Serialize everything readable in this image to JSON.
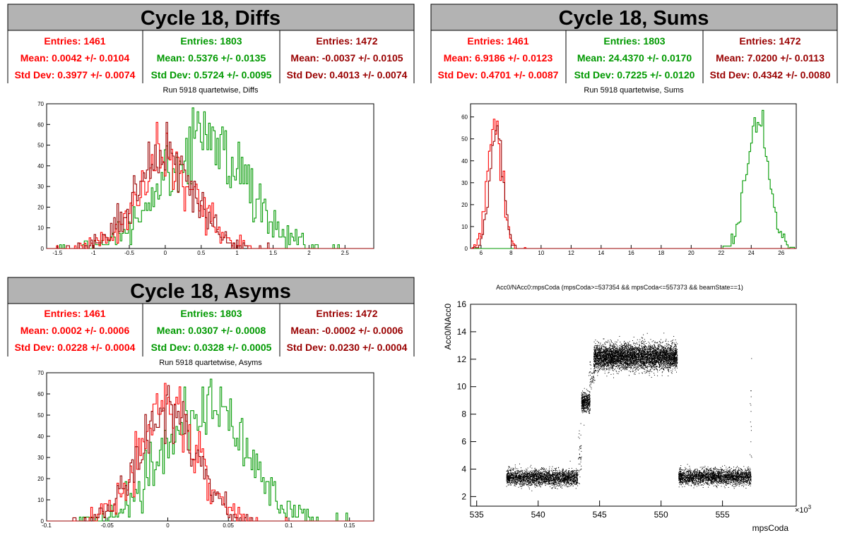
{
  "colors": {
    "red": "#ff0000",
    "green": "#009900",
    "darkred": "#990000",
    "header_bg": "#b3b3b3"
  },
  "chart_data": [
    {
      "type": "histogram",
      "panel_title": "Cycle 18, Diffs",
      "title": "Run 5918 quartetwise, Diffs",
      "xlim": [
        -1.65,
        2.9
      ],
      "ylim": [
        0,
        70
      ],
      "x_ticks": [
        "-1.5",
        "-1",
        "-0.5",
        "0",
        "0.5",
        "1",
        "1.5",
        "2",
        "2.5"
      ],
      "y_ticks": [
        "0",
        "10",
        "20",
        "30",
        "40",
        "50",
        "60",
        "70"
      ],
      "stats": [
        {
          "color": "red",
          "entries": "Entries: 1461",
          "mean": "Mean: 0.0042 +/- 0.0104",
          "std": "Std Dev: 0.3977 +/- 0.0074"
        },
        {
          "color": "green",
          "entries": "Entries: 1803",
          "mean": "Mean: 0.5376 +/- 0.0135",
          "std": "Std Dev: 0.5724 +/- 0.0095"
        },
        {
          "color": "darkred",
          "entries": "Entries: 1472",
          "mean": "Mean: -0.0037 +/- 0.0105",
          "std": "Std Dev: 0.4013 +/- 0.0074"
        }
      ],
      "series": [
        {
          "color": "green",
          "entries": 1803,
          "mean": 0.5376,
          "std": 0.5724,
          "peak": 68
        },
        {
          "color": "red",
          "entries": 1461,
          "mean": 0.0042,
          "std": 0.3977,
          "peak": 61
        },
        {
          "color": "darkred",
          "entries": 1472,
          "mean": -0.0037,
          "std": 0.4013,
          "peak": 61
        }
      ]
    },
    {
      "type": "histogram",
      "panel_title": "Cycle 18, Sums",
      "title": "Run 5918 quartetwise, Sums",
      "xlim": [
        5.3,
        27.0
      ],
      "ylim": [
        0,
        66
      ],
      "x_ticks": [
        "6",
        "8",
        "10",
        "12",
        "14",
        "16",
        "18",
        "20",
        "22",
        "24",
        "26"
      ],
      "y_ticks": [
        "0",
        "10",
        "20",
        "30",
        "40",
        "50",
        "60"
      ],
      "stats": [
        {
          "color": "red",
          "entries": "Entries: 1461",
          "mean": "Mean: 6.9186 +/- 0.0123",
          "std": "Std Dev: 0.4701 +/- 0.0087"
        },
        {
          "color": "green",
          "entries": "Entries: 1803",
          "mean": "Mean: 24.4370 +/- 0.0170",
          "std": "Std Dev: 0.7225 +/- 0.0120"
        },
        {
          "color": "darkred",
          "entries": "Entries: 1472",
          "mean": "Mean: 7.0200 +/- 0.0113",
          "std": "Std Dev: 0.4342 +/- 0.0080"
        }
      ],
      "series": [
        {
          "color": "green",
          "entries": 1803,
          "mean": 24.437,
          "std": 0.7225,
          "peak": 63
        },
        {
          "color": "red",
          "entries": 1461,
          "mean": 6.9186,
          "std": 0.4701,
          "peak": 59
        },
        {
          "color": "darkred",
          "entries": 1472,
          "mean": 7.02,
          "std": 0.4342,
          "peak": 56
        }
      ]
    },
    {
      "type": "histogram",
      "panel_title": "Cycle 18, Asyms",
      "title": "Run 5918 quartetwise, Asyms",
      "xlim": [
        -0.1,
        0.17
      ],
      "ylim": [
        0,
        70
      ],
      "x_ticks": [
        "-0.1",
        "-0.05",
        "0",
        "0.05",
        "0.1",
        "0.15"
      ],
      "y_ticks": [
        "0",
        "10",
        "20",
        "30",
        "40",
        "50",
        "60",
        "70"
      ],
      "stats": [
        {
          "color": "red",
          "entries": "Entries: 1461",
          "mean": "Mean: 0.0002 +/- 0.0006",
          "std": "Std Dev: 0.0228 +/- 0.0004"
        },
        {
          "color": "green",
          "entries": "Entries: 1803",
          "mean": "Mean: 0.0307 +/- 0.0008",
          "std": "Std Dev: 0.0328 +/- 0.0005"
        },
        {
          "color": "darkred",
          "entries": "Entries: 1472",
          "mean": "Mean: -0.0002 +/- 0.0006",
          "std": "Std Dev: 0.0230 +/- 0.0004"
        }
      ],
      "series": [
        {
          "color": "green",
          "entries": 1803,
          "mean": 0.0307,
          "std": 0.0328,
          "peak": 67
        },
        {
          "color": "red",
          "entries": 1461,
          "mean": 0.0002,
          "std": 0.0228,
          "peak": 65
        },
        {
          "color": "darkred",
          "entries": 1472,
          "mean": -0.0002,
          "std": 0.023,
          "peak": 64
        }
      ]
    },
    {
      "type": "scatter",
      "title": "Acc0/NAcc0:mpsCoda (mpsCoda>=537354 && mpsCoda<=557373 && beamState==1)",
      "xlabel": "mpsCoda",
      "ylabel": "Acc0/NAcc0",
      "x_multiplier": "×10",
      "x_multiplier_exp": "3",
      "xlim": [
        534.5,
        561.0
      ],
      "ylim": [
        1.3,
        16.0
      ],
      "x_ticks": [
        "535",
        "540",
        "545",
        "550",
        "555"
      ],
      "y_ticks": [
        "2",
        "4",
        "6",
        "8",
        "10",
        "12",
        "14",
        "16"
      ],
      "clusters": [
        {
          "x": [
            537.4,
            543.2
          ],
          "y": [
            3.4,
            0.28
          ],
          "n": 2600
        },
        {
          "x": [
            543.25,
            543.5
          ],
          "y": [
            5.0,
            0.8
          ],
          "n": 40
        },
        {
          "x": [
            543.5,
            544.2
          ],
          "y": [
            8.9,
            0.35
          ],
          "n": 500
        },
        {
          "x": [
            544.1,
            544.6
          ],
          "y": [
            10.8,
            0.5
          ],
          "n": 60
        },
        {
          "x": [
            544.5,
            551.3
          ],
          "y": [
            12.2,
            0.45
          ],
          "n": 5200
        },
        {
          "x": [
            551.4,
            557.3
          ],
          "y": [
            3.45,
            0.28
          ],
          "n": 2600
        },
        {
          "x": [
            557.2,
            557.35
          ],
          "y": [
            8.0,
            2.6
          ],
          "n": 14
        }
      ]
    }
  ]
}
